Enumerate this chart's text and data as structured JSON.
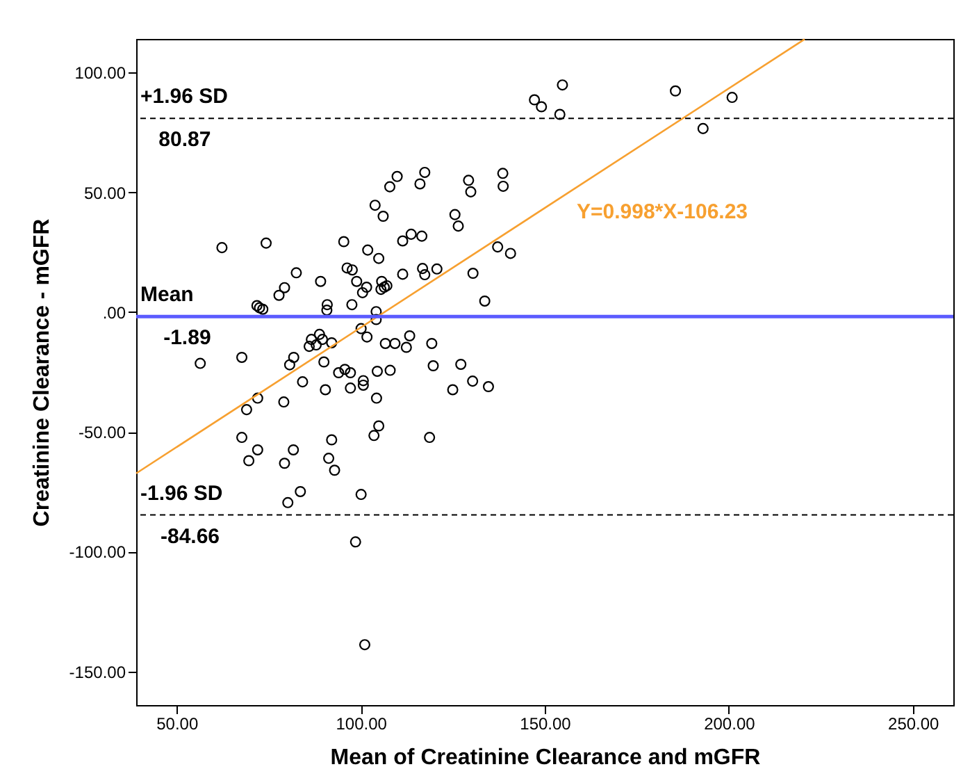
{
  "chart_data": {
    "type": "scatter",
    "xlabel": "Mean of Creatinine Clearance and mGFR",
    "ylabel": "Creatinine Clearance - mGFR",
    "xlim": [
      39,
      261
    ],
    "ylim": [
      -164,
      114
    ],
    "xticks": [
      {
        "value": 50,
        "label": "50.00"
      },
      {
        "value": 100,
        "label": "100.00"
      },
      {
        "value": 150,
        "label": "150.00"
      },
      {
        "value": 200,
        "label": "200.00"
      },
      {
        "value": 250,
        "label": "250.00"
      }
    ],
    "yticks": [
      {
        "value": -150,
        "label": "-150.00"
      },
      {
        "value": -100,
        "label": "-100.00"
      },
      {
        "value": -50,
        "label": "-50.00"
      },
      {
        "value": 0,
        "label": ".00"
      },
      {
        "value": 50,
        "label": "50.00"
      },
      {
        "value": 100,
        "label": "100.00"
      }
    ],
    "grid": false,
    "marker": "circle",
    "series": [
      {
        "color": "#000000",
        "x": [
          147.2,
          149.1,
          154.8,
          154.1,
          185.5,
          200.9,
          193.0,
          62.3,
          74.3,
          95.4,
          103.9,
          106.1,
          107.9,
          109.9,
          116.1,
          117.4,
          129.3,
          129.9,
          138.6,
          138.7,
          125.6,
          126.5,
          111.4,
          113.7,
          116.6,
          101.9,
          104.9,
          137.2,
          140.7,
          82.5,
          79.3,
          77.8,
          89.1,
          96.3,
          97.7,
          98.9,
          100.5,
          101.6,
          105.7,
          106.4,
          107.1,
          105.5,
          111.4,
          116.8,
          117.4,
          120.7,
          130.5,
          133.7,
          71.8,
          72.5,
          73.4,
          90.9,
          90.8,
          97.6,
          104.2,
          104.2,
          100.1,
          101.7,
          86.6,
          88.8,
          89.6,
          92.1,
          86.0,
          87.9,
          106.7,
          109.3,
          112.4,
          113.3,
          119.3,
          56.4,
          67.7,
          81.8,
          80.7,
          90.0,
          127.2,
          94.0,
          95.7,
          97.2,
          100.7,
          100.7,
          104.5,
          108.0,
          119.7,
          84.2,
          90.4,
          97.2,
          125.0,
          130.4,
          134.7,
          72.0,
          69.0,
          79.1,
          104.3,
          67.7,
          72.0,
          81.7,
          92.1,
          104.9,
          103.6,
          118.7,
          69.6,
          79.3,
          91.3,
          92.9,
          83.6,
          80.2,
          100.1,
          98.6,
          101.1
        ],
        "values": [
          88.6,
          85.7,
          94.8,
          82.5,
          92.3,
          89.6,
          76.6,
          26.9,
          28.8,
          29.4,
          44.6,
          40.0,
          52.3,
          56.6,
          53.5,
          58.3,
          55.0,
          50.2,
          57.9,
          52.5,
          40.7,
          35.9,
          29.7,
          32.5,
          31.7,
          25.9,
          22.4,
          27.2,
          24.5,
          16.4,
          10.2,
          7.0,
          12.8,
          18.4,
          17.6,
          12.8,
          8.1,
          10.4,
          12.8,
          10.4,
          11.0,
          9.5,
          15.8,
          18.2,
          15.6,
          18.0,
          16.2,
          4.6,
          2.7,
          1.8,
          1.2,
          3.1,
          0.8,
          3.1,
          0.2,
          -3.1,
          -6.9,
          -10.4,
          -11.4,
          -9.3,
          -11.4,
          -12.8,
          -14.3,
          -13.7,
          -13.1,
          -13.1,
          -14.7,
          -9.9,
          -13.1,
          -21.4,
          -18.9,
          -18.9,
          -22.0,
          -20.8,
          -21.8,
          -25.3,
          -23.9,
          -25.3,
          -28.6,
          -30.5,
          -24.7,
          -24.3,
          -22.4,
          -29.1,
          -32.4,
          -31.7,
          -32.4,
          -28.8,
          -31.1,
          -35.9,
          -40.7,
          -37.5,
          -35.9,
          -52.3,
          -57.5,
          -57.5,
          -53.3,
          -47.5,
          -51.5,
          -52.3,
          -62.0,
          -63.1,
          -61.0,
          -66.0,
          -74.9,
          -79.5,
          -76.1,
          -95.9,
          -138.8
        ]
      },
      {
        "type": "line",
        "color": "#f7a030",
        "marker": "none",
        "x": [
          39,
          220.6
        ],
        "values": [
          -67.3,
          113.9
        ]
      }
    ],
    "ref_lines": [
      {
        "axis": "y",
        "value": 80.87,
        "label": "+1.96 SD",
        "color": "#000000",
        "line_style": "dashed"
      },
      {
        "axis": "y",
        "value": -1.89,
        "label": "Mean",
        "color": "#5b5bff",
        "line_style": "solid"
      },
      {
        "axis": "y",
        "value": -84.66,
        "label": "-1.96 SD",
        "color": "#000000",
        "line_style": "dashed"
      }
    ],
    "annotations": [
      {
        "text": "80.87",
        "x": 45.1,
        "y": 80.87
      },
      {
        "text": "-1.89",
        "x": 46.4,
        "y": -1.89
      },
      {
        "text": "-84.66",
        "x": 45.6,
        "y": -84.66
      },
      "Y=0.998*X-106.23"
    ]
  }
}
